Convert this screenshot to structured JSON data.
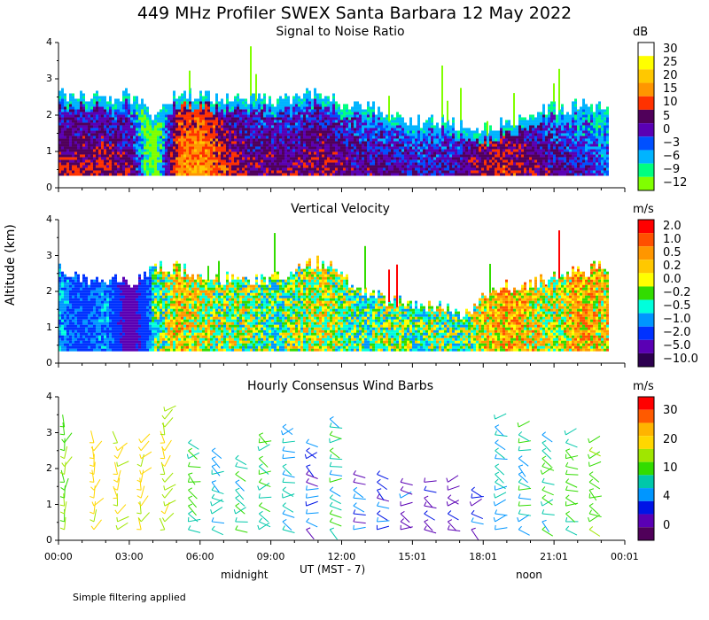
{
  "header": {
    "title": "449 MHz Profiler SWEX Santa Barbara 12 May 2022",
    "y_axis_label": "Altitude (km)",
    "x_axis_label": "UT  (MST - 7)",
    "midnight_label": "midnight",
    "noon_label": "noon",
    "footnote": "Simple filtering applied"
  },
  "chart_data": [
    {
      "type": "heatmap",
      "title": "Signal to Noise Ratio",
      "colorbar_unit": "dB",
      "colorbar_ticks": [
        "30",
        "25",
        "20",
        "15",
        "10",
        "5",
        "0",
        "−3",
        "−6",
        "−9",
        "−12"
      ],
      "colorbar_colors": [
        "#ffffff",
        "#ffff00",
        "#ffc800",
        "#ff9600",
        "#ff3200",
        "#50005a",
        "#5a00b4",
        "#0050ff",
        "#00b4ff",
        "#00ff80",
        "#80ff00"
      ],
      "y_ticks": [
        "0",
        "1",
        "2",
        "3",
        "4"
      ],
      "ylim": [
        0,
        4
      ],
      "x_ticks": [
        "00:00",
        "03:00",
        "06:00",
        "09:00",
        "12:00",
        "15:01",
        "18:01",
        "21:01",
        "00:01"
      ],
      "time_hours": [
        0,
        1,
        2,
        3,
        4,
        5,
        6,
        7,
        8,
        9,
        10,
        11,
        12,
        13,
        14,
        15,
        16,
        17,
        18,
        19,
        20,
        21,
        22,
        23
      ],
      "top_km": [
        2.6,
        2.5,
        2.4,
        2.5,
        2.0,
        2.5,
        2.5,
        2.4,
        2.4,
        2.4,
        2.5,
        2.6,
        2.3,
        2.2,
        2.0,
        1.8,
        1.8,
        1.7,
        1.6,
        1.8,
        2.0,
        2.2,
        2.2,
        2.2
      ],
      "surface_snr_db": [
        8,
        8,
        8,
        6,
        -12,
        15,
        18,
        10,
        6,
        6,
        6,
        8,
        6,
        4,
        4,
        2,
        2,
        4,
        8,
        10,
        6,
        4,
        2,
        0
      ]
    },
    {
      "type": "heatmap",
      "title": "Vertical Velocity",
      "colorbar_unit": "m/s",
      "colorbar_ticks": [
        "2.0",
        "1.0",
        "0.5",
        "0.2",
        "0.0",
        "−0.2",
        "−0.5",
        "−1.0",
        "−2.0",
        "−5.0",
        "−10.0"
      ],
      "colorbar_colors": [
        "#ff0000",
        "#ff5000",
        "#ff9600",
        "#ffc800",
        "#ffff00",
        "#32dc00",
        "#00ffdc",
        "#0096ff",
        "#0032ff",
        "#5a00b4",
        "#2d0050"
      ],
      "y_ticks": [
        "0",
        "1",
        "2",
        "3",
        "4"
      ],
      "ylim": [
        0,
        4
      ],
      "x_ticks": [
        "00:00",
        "03:00",
        "06:00",
        "09:00",
        "12:00",
        "15:01",
        "18:01",
        "21:01",
        "00:01"
      ],
      "time_hours": [
        0,
        1,
        2,
        3,
        4,
        5,
        6,
        7,
        8,
        9,
        10,
        11,
        12,
        13,
        14,
        15,
        16,
        17,
        18,
        19,
        20,
        21,
        22,
        23
      ],
      "top_km": [
        2.7,
        2.3,
        2.3,
        2.2,
        2.6,
        2.6,
        2.4,
        2.3,
        2.2,
        2.4,
        2.6,
        2.8,
        2.4,
        1.9,
        1.7,
        1.6,
        1.5,
        1.3,
        1.8,
        2.1,
        2.2,
        2.4,
        2.6,
        2.6
      ],
      "mean_w_ms": [
        -1.0,
        -2.0,
        -1.0,
        -5.0,
        -0.5,
        0.2,
        0.0,
        -0.2,
        -0.2,
        -0.5,
        -0.2,
        0.0,
        -0.2,
        -0.5,
        -0.2,
        -0.5,
        -0.2,
        -0.5,
        0.2,
        0.5,
        0.2,
        -0.2,
        0.5,
        0.2
      ]
    },
    {
      "type": "scatter",
      "title": "Hourly Consensus Wind Barbs",
      "colorbar_unit": "m/s",
      "colorbar_ticks": [
        "30",
        "20",
        "10",
        "4",
        "0"
      ],
      "colorbar_colors": [
        "#ff0000",
        "#ff5a00",
        "#ffb400",
        "#ffd700",
        "#a0e600",
        "#32dc00",
        "#00c8aa",
        "#0096ff",
        "#0014e6",
        "#5a00b4",
        "#50005a"
      ],
      "y_ticks": [
        "0",
        "1",
        "2",
        "3",
        "4"
      ],
      "ylim": [
        0,
        4
      ],
      "x_ticks": [
        "00:00",
        "03:00",
        "06:00",
        "09:00",
        "12:00",
        "15:01",
        "18:01",
        "21:01",
        "00:01"
      ],
      "time_hours": [
        0.25,
        1.5,
        2.5,
        3.5,
        4.5,
        5.5,
        6.5,
        7.5,
        8.5,
        9.5,
        10.5,
        11.5,
        12.5,
        13.5,
        14.5,
        15.5,
        16.5,
        17.5,
        18.5,
        19.5,
        20.5,
        21.5,
        22.5
      ],
      "top_km": [
        3.3,
        2.9,
        2.9,
        2.8,
        3.8,
        2.9,
        2.6,
        2.5,
        3.0,
        3.2,
        2.9,
        3.5,
        2.0,
        2.0,
        1.8,
        1.7,
        1.7,
        1.5,
        3.4,
        3.2,
        3.0,
        3.1,
        2.8
      ],
      "mean_speed_ms": [
        10,
        14,
        12,
        14,
        12,
        8,
        6,
        6,
        7,
        5,
        3,
        6,
        3,
        2,
        2,
        1,
        1,
        2,
        5,
        6,
        6,
        8,
        9
      ]
    }
  ]
}
